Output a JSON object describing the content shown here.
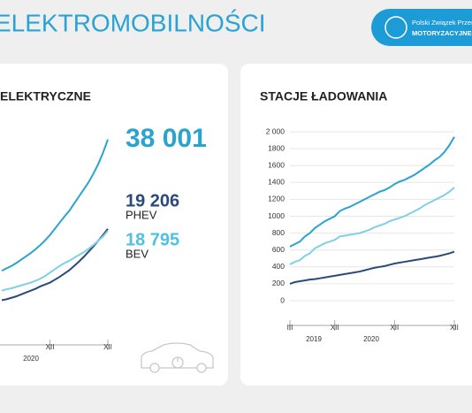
{
  "header": {
    "title": "ELEKTROMOBILNOŚCI"
  },
  "logo": {
    "line1": "Polski Związek Przemy",
    "line2": "MOTORYZACYJNEG"
  },
  "chart_data": [
    {
      "type": "line",
      "title": "ELEKTRYCZNE",
      "categories": [
        null,
        null,
        null,
        null,
        null,
        null,
        null,
        null,
        null,
        null,
        "XII",
        null,
        null,
        null,
        null,
        null,
        null,
        null,
        null,
        null,
        null,
        null,
        "XII"
      ],
      "year_labels": [
        "2020"
      ],
      "ylim": [
        0,
        40000
      ],
      "series": [
        {
          "color": "#2aa3cf",
          "values": [
            10400,
            10900,
            11400,
            12000,
            12700,
            13400,
            14100,
            14900,
            15800,
            16800,
            17900,
            19200,
            20500,
            21800,
            23000,
            24500,
            26000,
            27500,
            29000,
            30800,
            32800,
            35200,
            38001
          ]
        },
        {
          "name": "PHEV",
          "color": "#2b4a7a",
          "values": [
            4200,
            4400,
            4700,
            5000,
            5400,
            5800,
            6200,
            6600,
            7100,
            7500,
            7900,
            8500,
            9100,
            9800,
            10500,
            11400,
            12300,
            13300,
            14400,
            15500,
            16700,
            17900,
            19206
          ]
        },
        {
          "name": "BEV",
          "color": "#7fd0e6",
          "values": [
            6200,
            6500,
            6700,
            7000,
            7300,
            7600,
            7900,
            8300,
            8700,
            9300,
            10000,
            10700,
            11400,
            12000,
            12500,
            13100,
            13700,
            14300,
            15000,
            15800,
            16700,
            17600,
            18795
          ]
        }
      ],
      "annotations": [
        "38 001",
        "19 206",
        "18 795"
      ]
    },
    {
      "type": "line",
      "title": "STACJE ŁADOWANIA",
      "categories": [
        "III",
        null,
        null,
        null,
        null,
        null,
        null,
        null,
        null,
        "XII",
        null,
        null,
        null,
        null,
        null,
        null,
        null,
        null,
        null,
        null,
        null,
        "XII",
        null,
        null,
        null,
        null,
        null,
        null,
        null,
        null,
        null,
        null,
        null,
        "XII"
      ],
      "year_labels": [
        "2019",
        "2020"
      ],
      "ylim": [
        0,
        2000
      ],
      "yticks": [
        0,
        200,
        400,
        600,
        800,
        1000,
        1200,
        1400,
        1600,
        1800,
        {
          "value": 2000,
          "label": "2 000"
        }
      ],
      "series": [
        {
          "color": "#2aa3cf",
          "values": [
            640,
            670,
            700,
            760,
            800,
            860,
            900,
            940,
            970,
            1000,
            1060,
            1090,
            1110,
            1140,
            1170,
            1200,
            1230,
            1260,
            1290,
            1310,
            1340,
            1380,
            1410,
            1430,
            1460,
            1490,
            1530,
            1570,
            1610,
            1660,
            1700,
            1760,
            1840,
            1940
          ]
        },
        {
          "color": "#7fd0e6",
          "values": [
            430,
            460,
            480,
            530,
            560,
            620,
            650,
            680,
            700,
            720,
            760,
            770,
            780,
            790,
            800,
            820,
            840,
            870,
            890,
            910,
            940,
            960,
            980,
            1000,
            1030,
            1060,
            1090,
            1130,
            1160,
            1190,
            1220,
            1250,
            1290,
            1340
          ]
        },
        {
          "color": "#2b4a7a",
          "values": [
            200,
            220,
            230,
            240,
            250,
            255,
            265,
            275,
            285,
            295,
            305,
            315,
            325,
            335,
            345,
            360,
            375,
            390,
            400,
            410,
            425,
            440,
            450,
            460,
            470,
            480,
            490,
            500,
            510,
            520,
            530,
            545,
            560,
            580
          ]
        }
      ]
    }
  ]
}
